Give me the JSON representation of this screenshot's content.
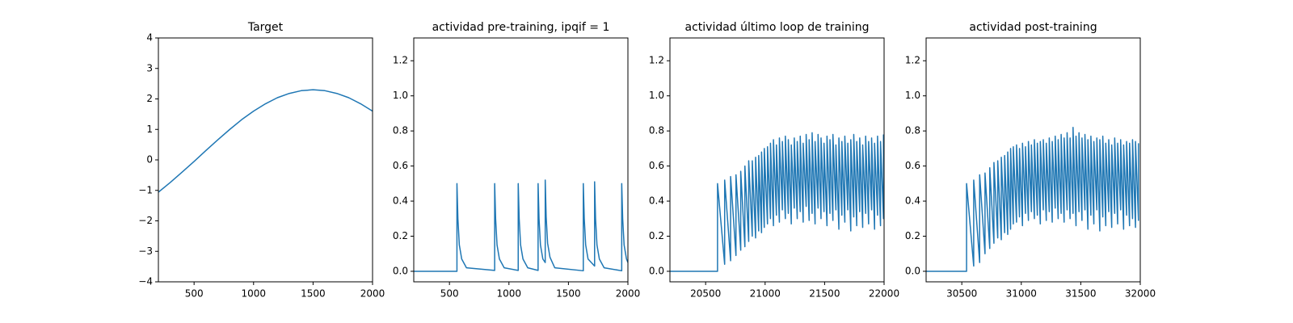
{
  "chart_data": [
    {
      "type": "line",
      "title": "Target",
      "color": "#1f77b4",
      "x": [
        200,
        300,
        400,
        500,
        600,
        700,
        800,
        900,
        1000,
        1100,
        1200,
        1300,
        1400,
        1500,
        1600,
        1700,
        1800,
        1900,
        2000
      ],
      "values": [
        -1.06,
        -0.74,
        -0.4,
        -0.05,
        0.31,
        0.66,
        1.0,
        1.32,
        1.6,
        1.84,
        2.04,
        2.18,
        2.27,
        2.3,
        2.27,
        2.18,
        2.04,
        1.84,
        1.6
      ],
      "xlim": [
        200,
        2000
      ],
      "ylim": [
        -4,
        4
      ],
      "xticks": [
        500,
        1000,
        1500,
        2000
      ],
      "yticks": [
        {
          "value": -4,
          "label": "−4"
        },
        {
          "value": -3,
          "label": "−3"
        },
        {
          "value": -2,
          "label": "−2"
        },
        {
          "value": -1,
          "label": "−1"
        },
        0,
        1,
        2,
        3,
        4
      ]
    },
    {
      "type": "line",
      "title": "actividad pre-training, ipqif = 1",
      "color": "#1f77b4",
      "x": [
        200,
        563,
        563,
        571,
        583,
        603,
        643,
        880,
        880,
        888,
        900,
        920,
        960,
        1078,
        1078,
        1086,
        1098,
        1118,
        1158,
        1245,
        1245,
        1253,
        1265,
        1285,
        1305,
        1305,
        1313,
        1325,
        1345,
        1385,
        1625,
        1625,
        1633,
        1645,
        1665,
        1720,
        1720,
        1728,
        1740,
        1760,
        1800,
        1948,
        1948,
        1956,
        1968,
        1988,
        2000
      ],
      "values": [
        0,
        0,
        0.5,
        0.3,
        0.15,
        0.07,
        0.02,
        0.005,
        0.5,
        0.3,
        0.15,
        0.07,
        0.02,
        0.005,
        0.5,
        0.3,
        0.15,
        0.07,
        0.02,
        0.005,
        0.5,
        0.3,
        0.15,
        0.07,
        0.05,
        0.52,
        0.31,
        0.16,
        0.08,
        0.02,
        0.003,
        0.5,
        0.3,
        0.15,
        0.07,
        0.03,
        0.51,
        0.3,
        0.15,
        0.07,
        0.02,
        0.003,
        0.5,
        0.3,
        0.15,
        0.07,
        0.05
      ],
      "xlim": [
        200,
        2000
      ],
      "ylim": [
        -0.06,
        1.33
      ],
      "xticks": [
        500,
        1000,
        1500,
        2000
      ],
      "yticks": [
        {
          "value": 0,
          "label": "0.0"
        },
        0.2,
        0.4,
        0.6,
        0.8,
        {
          "value": 1,
          "label": "1.0"
        },
        1.2
      ]
    },
    {
      "type": "line",
      "title": "actividad último loop de training",
      "color": "#1f77b4",
      "x": [
        20200,
        20600,
        20600,
        20660,
        20660,
        20710,
        20710,
        20755,
        20755,
        20795,
        20795,
        20830,
        20830,
        20862,
        20862,
        20892,
        20892,
        20920,
        20920,
        20946,
        20946,
        20970,
        20970,
        20993,
        20993,
        21020,
        21020,
        21045,
        21045,
        21070,
        21070,
        21095,
        21095,
        21120,
        21120,
        21145,
        21145,
        21170,
        21170,
        21195,
        21195,
        21220,
        21220,
        21245,
        21245,
        21270,
        21270,
        21295,
        21295,
        21320,
        21320,
        21345,
        21345,
        21370,
        21370,
        21395,
        21395,
        21420,
        21420,
        21445,
        21445,
        21470,
        21470,
        21495,
        21495,
        21520,
        21520,
        21545,
        21545,
        21570,
        21570,
        21595,
        21595,
        21620,
        21620,
        21645,
        21645,
        21670,
        21670,
        21695,
        21695,
        21720,
        21720,
        21745,
        21745,
        21770,
        21770,
        21795,
        21795,
        21820,
        21820,
        21845,
        21845,
        21870,
        21870,
        21895,
        21895,
        21920,
        21920,
        21945,
        21945,
        21970,
        21970,
        21995,
        21995
      ],
      "values": [
        0,
        0,
        0.5,
        0.04,
        0.52,
        0.06,
        0.54,
        0.09,
        0.55,
        0.12,
        0.57,
        0.14,
        0.6,
        0.17,
        0.63,
        0.2,
        0.63,
        0.19,
        0.65,
        0.23,
        0.66,
        0.22,
        0.68,
        0.25,
        0.7,
        0.27,
        0.71,
        0.3,
        0.73,
        0.26,
        0.75,
        0.32,
        0.72,
        0.28,
        0.76,
        0.35,
        0.74,
        0.3,
        0.77,
        0.33,
        0.75,
        0.27,
        0.72,
        0.36,
        0.76,
        0.3,
        0.74,
        0.34,
        0.77,
        0.28,
        0.73,
        0.37,
        0.78,
        0.29,
        0.75,
        0.33,
        0.79,
        0.27,
        0.74,
        0.36,
        0.78,
        0.3,
        0.76,
        0.34,
        0.73,
        0.26,
        0.77,
        0.33,
        0.75,
        0.29,
        0.78,
        0.35,
        0.72,
        0.24,
        0.76,
        0.32,
        0.74,
        0.28,
        0.77,
        0.35,
        0.73,
        0.23,
        0.75,
        0.31,
        0.78,
        0.26,
        0.74,
        0.34,
        0.76,
        0.25,
        0.72,
        0.33,
        0.77,
        0.27,
        0.74,
        0.35,
        0.76,
        0.24,
        0.73,
        0.32,
        0.77,
        0.26,
        0.74,
        0.3,
        0.78
      ],
      "xlim": [
        20200,
        22000
      ],
      "ylim": [
        -0.06,
        1.33
      ],
      "xticks": [
        20500,
        21000,
        21500,
        22000
      ],
      "yticks": [
        {
          "value": 0,
          "label": "0.0"
        },
        0.2,
        0.4,
        0.6,
        0.8,
        {
          "value": 1,
          "label": "1.0"
        },
        1.2
      ]
    },
    {
      "type": "line",
      "title": "actividad post-training",
      "color": "#1f77b4",
      "x": [
        30200,
        30540,
        30540,
        30600,
        30600,
        30650,
        30650,
        30695,
        30695,
        30735,
        30735,
        30770,
        30770,
        30802,
        30802,
        30832,
        30832,
        30860,
        30860,
        30886,
        30886,
        30910,
        30910,
        30933,
        30933,
        30960,
        30960,
        30985,
        30985,
        31010,
        31010,
        31035,
        31035,
        31060,
        31060,
        31085,
        31085,
        31110,
        31110,
        31135,
        31135,
        31160,
        31160,
        31185,
        31185,
        31210,
        31210,
        31235,
        31235,
        31260,
        31260,
        31285,
        31285,
        31310,
        31310,
        31335,
        31335,
        31360,
        31360,
        31385,
        31385,
        31410,
        31410,
        31435,
        31435,
        31460,
        31460,
        31485,
        31485,
        31510,
        31510,
        31535,
        31535,
        31560,
        31560,
        31585,
        31585,
        31610,
        31610,
        31635,
        31635,
        31660,
        31660,
        31685,
        31685,
        31710,
        31710,
        31735,
        31735,
        31760,
        31760,
        31785,
        31785,
        31810,
        31810,
        31835,
        31835,
        31860,
        31860,
        31885,
        31885,
        31910,
        31910,
        31935,
        31935,
        31960,
        31960,
        31985,
        31985
      ],
      "values": [
        0,
        0,
        0.5,
        0.03,
        0.52,
        0.05,
        0.55,
        0.1,
        0.56,
        0.13,
        0.59,
        0.16,
        0.62,
        0.19,
        0.63,
        0.18,
        0.65,
        0.22,
        0.66,
        0.21,
        0.68,
        0.24,
        0.7,
        0.27,
        0.71,
        0.28,
        0.72,
        0.31,
        0.7,
        0.26,
        0.73,
        0.33,
        0.71,
        0.29,
        0.74,
        0.34,
        0.72,
        0.3,
        0.75,
        0.32,
        0.73,
        0.27,
        0.74,
        0.35,
        0.75,
        0.29,
        0.73,
        0.34,
        0.76,
        0.28,
        0.74,
        0.36,
        0.77,
        0.3,
        0.75,
        0.33,
        0.78,
        0.28,
        0.76,
        0.35,
        0.79,
        0.3,
        0.76,
        0.33,
        0.82,
        0.26,
        0.77,
        0.34,
        0.79,
        0.29,
        0.76,
        0.35,
        0.78,
        0.24,
        0.75,
        0.32,
        0.77,
        0.27,
        0.74,
        0.35,
        0.76,
        0.23,
        0.75,
        0.31,
        0.77,
        0.26,
        0.73,
        0.34,
        0.75,
        0.25,
        0.72,
        0.33,
        0.76,
        0.27,
        0.73,
        0.35,
        0.75,
        0.24,
        0.72,
        0.32,
        0.74,
        0.26,
        0.73,
        0.3,
        0.75,
        0.25,
        0.74,
        0.29,
        0.73
      ],
      "xlim": [
        30200,
        32000
      ],
      "ylim": [
        -0.06,
        1.33
      ],
      "xticks": [
        30500,
        31000,
        31500,
        32000
      ],
      "yticks": [
        {
          "value": 0,
          "label": "0.0"
        },
        0.2,
        0.4,
        0.6,
        0.8,
        {
          "value": 1,
          "label": "1.0"
        },
        1.2
      ]
    }
  ]
}
